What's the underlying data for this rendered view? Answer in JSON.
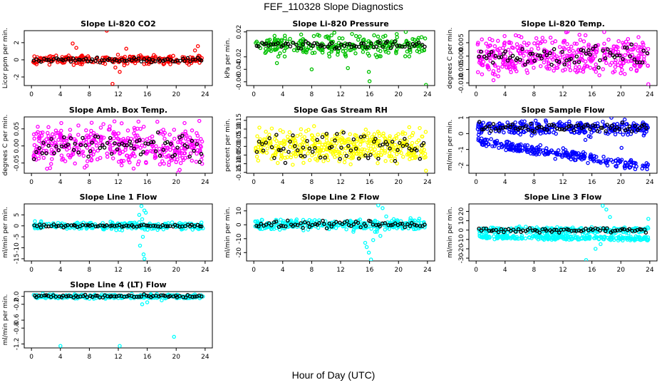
{
  "title": "FEF_110328  Slope Diagnostics",
  "xlabel": "Hour of Day (UTC)",
  "chart_data": [
    {
      "type": "scatter",
      "title": "Slope Li-820 CO2",
      "ylabel": "Licor ppm per min.",
      "ylim": [
        -3,
        3.4
      ],
      "yticks": [
        "-2",
        "0",
        "2"
      ],
      "yticks_v": [
        -2,
        0,
        2
      ],
      "xlim": [
        -1,
        25
      ],
      "xticks": [
        "0",
        "4",
        "8",
        "12",
        "16",
        "20",
        "24"
      ],
      "color": "#ff0000",
      "center": 0,
      "spread": 0.25,
      "black_spread": 0.12,
      "n": 260,
      "extra": [
        [
          5.7,
          1.9
        ],
        [
          10.4,
          3.4
        ],
        [
          6.2,
          1.4
        ],
        [
          13.1,
          1.3
        ],
        [
          12.2,
          -1.4
        ],
        [
          11.6,
          -0.9
        ],
        [
          22.6,
          1.1
        ],
        [
          23.0,
          1.6
        ],
        [
          11.2,
          -2.8
        ]
      ]
    },
    {
      "type": "scatter",
      "title": "Slope Li-820 Pressure",
      "ylabel": "kPa per min.",
      "ylim": [
        -0.066,
        0.022
      ],
      "yticks": [
        "-0.06",
        "-0.04",
        "-0.02",
        "0.02"
      ],
      "yticks_v": [
        -0.06,
        -0.04,
        -0.02,
        0.02
      ],
      "xlim": [
        -1,
        25
      ],
      "xticks": [
        "0",
        "4",
        "8",
        "12",
        "16",
        "20",
        "24"
      ],
      "color": "#00c000",
      "center": -0.002,
      "spread": 0.008,
      "black_spread": 0.003,
      "n": 260,
      "extra": [
        [
          8.0,
          -0.04
        ],
        [
          13.0,
          -0.038
        ],
        [
          15.9,
          -0.044
        ],
        [
          16.0,
          -0.059
        ],
        [
          23.8,
          -0.065
        ],
        [
          21.0,
          0.02
        ],
        [
          3.2,
          -0.03
        ]
      ]
    },
    {
      "type": "scatter",
      "title": "Slope Li-820 Temp.",
      "ylabel": "degrees C per min.",
      "ylim": [
        -0.011,
        0.0095
      ],
      "yticks": [
        "-0.010",
        "-0.005",
        "0.000",
        "0.005"
      ],
      "yticks_v": [
        -0.01,
        -0.005,
        0,
        0.005
      ],
      "xlim": [
        -1,
        25
      ],
      "xticks": [
        "0",
        "4",
        "8",
        "12",
        "16",
        "20",
        "24"
      ],
      "color": "#ff00ff",
      "center": 0,
      "spread": 0.0035,
      "black_spread": 0.002,
      "n": 420,
      "extra": [
        [
          17.7,
          0.009
        ],
        [
          23.8,
          -0.0105
        ],
        [
          2.4,
          -0.009
        ]
      ]
    },
    {
      "type": "scatter",
      "title": "Slope Amb. Box Temp.",
      "ylabel": "degrees C per min.",
      "ylim": [
        -0.08,
        0.085
      ],
      "yticks": [
        "-0.05",
        "0.00",
        "0.05"
      ],
      "yticks_v": [
        -0.05,
        0,
        0.05
      ],
      "xlim": [
        -1,
        25
      ],
      "xticks": [
        "0",
        "4",
        "8",
        "12",
        "16",
        "20",
        "24"
      ],
      "color": "#ff00ff",
      "center": 0,
      "spread": 0.03,
      "black_spread": 0.018,
      "n": 420,
      "extra": []
    },
    {
      "type": "scatter",
      "title": "Slope Gas Stream RH",
      "ylabel": "percent per min.",
      "ylim": [
        -0.155,
        0.17
      ],
      "yticks": [
        "-0.15",
        "-0.10",
        "-0.05",
        "0.00",
        "0.05",
        "0.10",
        "0.15"
      ],
      "yticks_v": [
        -0.15,
        -0.1,
        -0.05,
        0,
        0.05,
        0.1,
        0.15
      ],
      "xlim": [
        -1,
        25
      ],
      "xticks": [
        "0",
        "4",
        "8",
        "12",
        "16",
        "20",
        "24"
      ],
      "color": "#ffff00",
      "center": 0,
      "spread": 0.045,
      "black_spread": 0.04,
      "n": 420,
      "extra": [
        [
          23.8,
          -0.14
        ]
      ]
    },
    {
      "type": "scatter",
      "title": "Slope Sample Flow",
      "ylabel": "ml/min per min.",
      "ylim": [
        -2.5,
        1.05
      ],
      "yticks": [
        "-2",
        "-1",
        "0",
        "1"
      ],
      "yticks_v": [
        -2,
        -1,
        0,
        1
      ],
      "xlim": [
        -1,
        25
      ],
      "xticks": [
        "0",
        "4",
        "8",
        "12",
        "16",
        "20",
        "24"
      ],
      "color": "#0000ff",
      "center": 0.35,
      "spread": 0.22,
      "black_spread": 0.15,
      "n": 300,
      "band": {
        "from": -0.5,
        "to": -2.1,
        "spread": 0.15,
        "n": 260
      },
      "extra": [
        [
          18.7,
          1.0
        ],
        [
          15.1,
          -0.4
        ],
        [
          20.1,
          -0.9
        ]
      ]
    },
    {
      "type": "scatter",
      "title": "Slope Line 1 Flow",
      "ylabel": "ml/min per min.",
      "ylim": [
        -16,
        10
      ],
      "yticks": [
        "-15",
        "-10",
        "-5",
        "0",
        "5"
      ],
      "yticks_v": [
        -15,
        -10,
        -5,
        0,
        5
      ],
      "xlim": [
        -1,
        25
      ],
      "xticks": [
        "0",
        "4",
        "8",
        "12",
        "16",
        "20",
        "24"
      ],
      "color": "#00ffff",
      "center": 0,
      "spread": 0.8,
      "black_spread": 0.3,
      "n": 300,
      "extra": [
        [
          15.2,
          9
        ],
        [
          15.6,
          7
        ],
        [
          15.8,
          6
        ],
        [
          14.9,
          5
        ],
        [
          15.3,
          3
        ],
        [
          15.4,
          -5
        ],
        [
          15.0,
          -9
        ],
        [
          15.5,
          -13
        ],
        [
          15.6,
          -15
        ]
      ]
    },
    {
      "type": "scatter",
      "title": "Slope Line 2 Flow",
      "ylabel": "ml/min per min.",
      "ylim": [
        -26,
        15
      ],
      "yticks": [
        "-20",
        "-10",
        "0",
        "10"
      ],
      "yticks_v": [
        -20,
        -10,
        0,
        10
      ],
      "xlim": [
        -1,
        25
      ],
      "xticks": [
        "0",
        "4",
        "8",
        "12",
        "16",
        "20",
        "24"
      ],
      "color": "#00ffff",
      "center": 0,
      "spread": 1.8,
      "black_spread": 1.2,
      "n": 320,
      "extra": [
        [
          17.2,
          14
        ],
        [
          17.8,
          12
        ],
        [
          18.3,
          6
        ],
        [
          17.0,
          -5
        ],
        [
          16.5,
          -11
        ],
        [
          15.4,
          -13
        ],
        [
          15.6,
          -16
        ],
        [
          15.9,
          -20
        ],
        [
          16.2,
          -25
        ],
        [
          17.5,
          -8
        ]
      ]
    },
    {
      "type": "scatter",
      "title": "Slope Line 3 Flow",
      "ylabel": "ml/min per min.",
      "ylim": [
        -33,
        28
      ],
      "yticks": [
        "-30",
        "-20",
        "-10",
        "0",
        "10",
        "20"
      ],
      "yticks_v": [
        -30,
        -20,
        -10,
        0,
        10,
        20
      ],
      "xlim": [
        -1,
        25
      ],
      "xticks": [
        "0",
        "4",
        "8",
        "12",
        "16",
        "20",
        "24"
      ],
      "color": "#00ffff",
      "center": 0,
      "spread": 1.8,
      "black_spread": 1.2,
      "n": 260,
      "band": {
        "from": -7,
        "to": -9,
        "spread": 1.2,
        "n": 260
      },
      "extra": [
        [
          17.5,
          26
        ],
        [
          18.0,
          22
        ],
        [
          18.5,
          14
        ],
        [
          16.5,
          -20
        ],
        [
          17.2,
          -15
        ],
        [
          15.2,
          -32
        ],
        [
          23.8,
          12
        ]
      ]
    },
    {
      "type": "scatter",
      "title": "Slope Line 4 (LT) Flow",
      "ylabel": "ml/min per min.",
      "ylim": [
        -1.3,
        0.12
      ],
      "yticks": [
        "-1.2",
        "-0.8",
        "-0.6",
        "-0.2",
        "0.0"
      ],
      "yticks_v": [
        -1.2,
        -0.8,
        -0.6,
        -0.2,
        0
      ],
      "xlim": [
        -1,
        25
      ],
      "xticks": [
        "0",
        "4",
        "8",
        "12",
        "16",
        "20",
        "24"
      ],
      "color": "#00ffff",
      "center": 0,
      "spread": 0.025,
      "black_spread": 0.02,
      "n": 320,
      "extra": [
        [
          4.0,
          -1.25
        ],
        [
          12.2,
          -1.25
        ],
        [
          19.7,
          -1.02
        ],
        [
          15.3,
          -0.2
        ],
        [
          16.0,
          -0.15
        ],
        [
          18.0,
          -0.1
        ],
        [
          18.5,
          -0.05
        ]
      ]
    }
  ]
}
